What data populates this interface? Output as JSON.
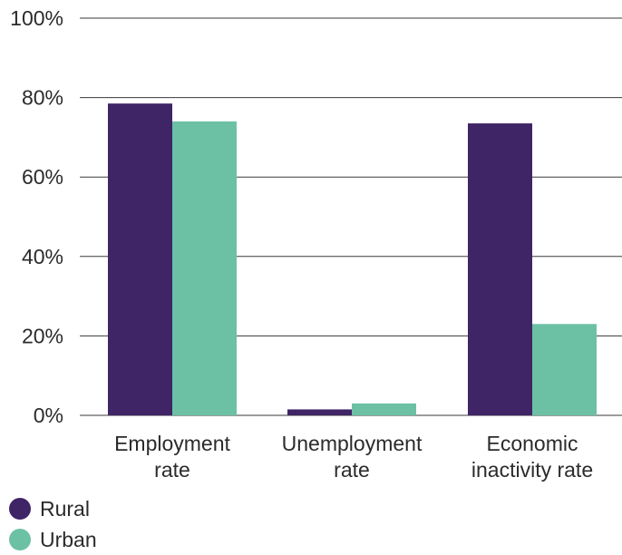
{
  "chart_data": {
    "type": "bar",
    "categories": [
      [
        "Employment",
        "rate"
      ],
      [
        "Unemployment",
        "rate"
      ],
      [
        "Economic",
        "inactivity rate"
      ]
    ],
    "series": [
      {
        "name": "Rural",
        "color": "#3f2466",
        "values": [
          78.5,
          1.5,
          73.5
        ]
      },
      {
        "name": "Urban",
        "color": "#6cc1a4",
        "values": [
          74.0,
          3.0,
          23.0
        ]
      }
    ],
    "yticks": [
      0,
      20,
      40,
      60,
      80,
      100
    ],
    "ytick_labels": [
      "0%",
      "20%",
      "40%",
      "60%",
      "80%",
      "100%"
    ],
    "ylim": [
      0,
      100
    ],
    "grid": true,
    "legend_position": "bottom-left"
  }
}
